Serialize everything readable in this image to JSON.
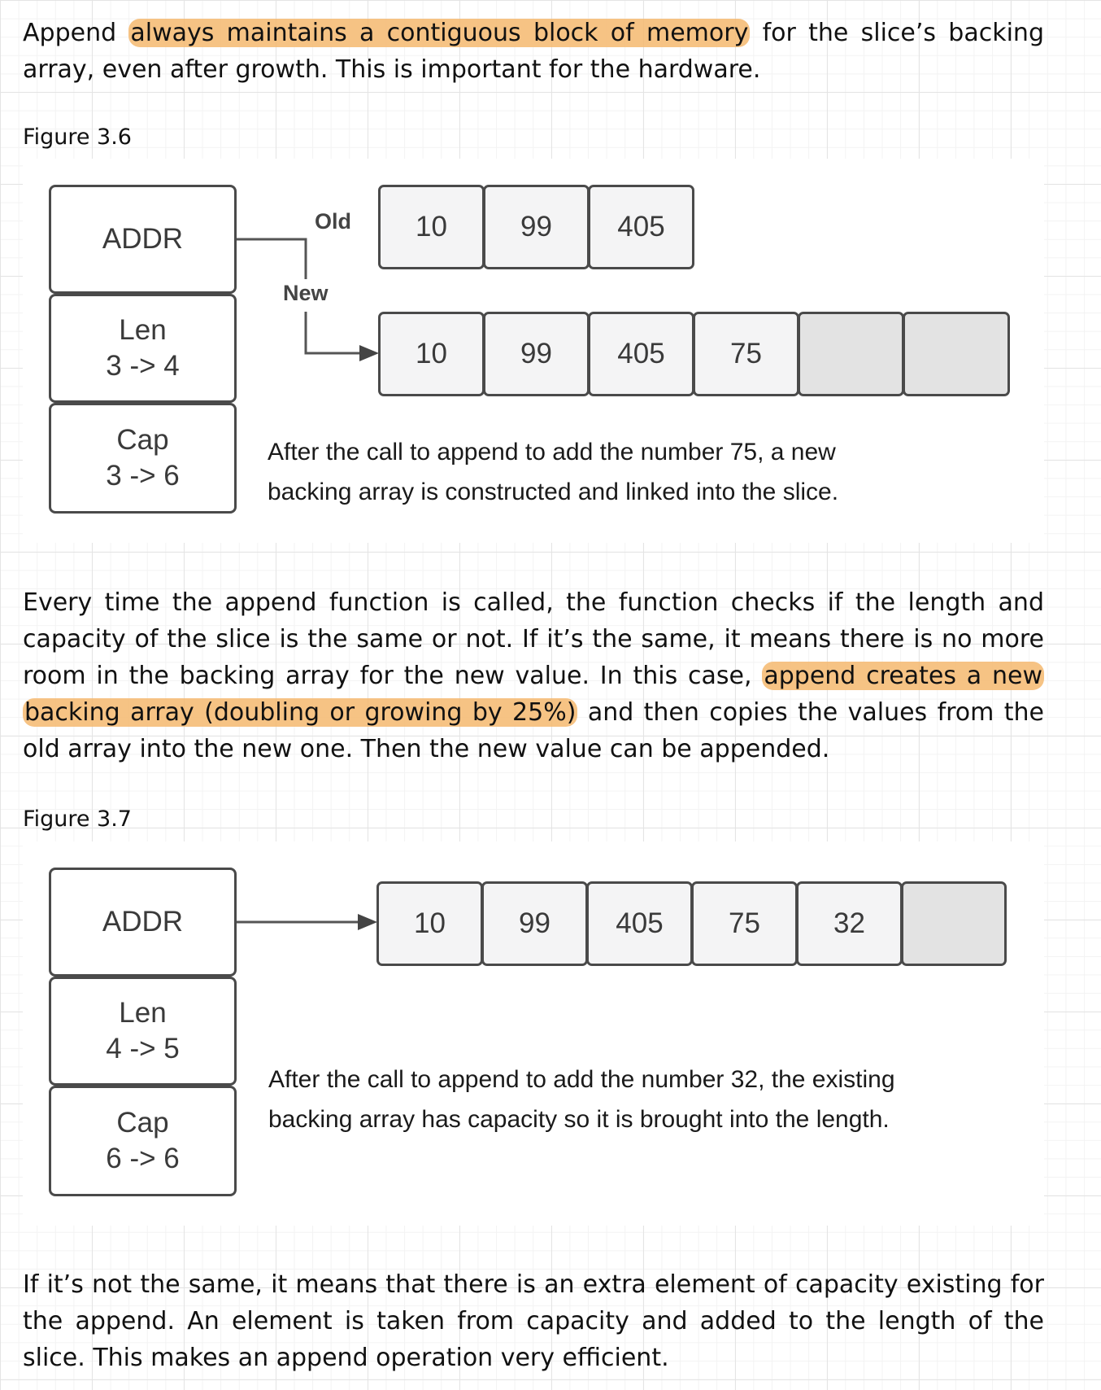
{
  "paragraphs": {
    "p1": {
      "pre": "Append ",
      "hl": "always maintains a contiguous block of memory",
      "post": " for the slice’s backing array, even after growth. This is important for the hardware."
    },
    "p2": {
      "pre": "Every time the append function is called, the function checks if the length and capacity of the slice is the same or not. If it’s the same, it means there is no more room in the backing array for the new value. In this case, ",
      "hl": "append creates a new backing array (doubling or growing by 25%)",
      "post": " and then copies the values from the old array into the new one. Then the new value can be appended."
    },
    "p3": "If it’s not the same, it means that there is an extra element of capacity existing for the append. An element is taken from capacity and added to the length of the slice. This makes an append operation very efficient."
  },
  "figure_3_6": {
    "label": "Figure 3.6",
    "header": {
      "addr": "ADDR",
      "len_label": "Len",
      "len_value": "3 -> 4",
      "cap_label": "Cap",
      "cap_value": "3 -> 6"
    },
    "old_label": "Old",
    "new_label": "New",
    "old_array": [
      "10",
      "99",
      "405"
    ],
    "new_array": [
      "10",
      "99",
      "405",
      "75",
      "",
      ""
    ],
    "caption_line1": "After the call to append to add the number 75, a new",
    "caption_line2": "backing array is constructed and linked into the slice."
  },
  "figure_3_7": {
    "label": "Figure 3.7",
    "header": {
      "addr": "ADDR",
      "len_label": "Len",
      "len_value": "4 -> 5",
      "cap_label": "Cap",
      "cap_value": "6 -> 6"
    },
    "array": [
      "10",
      "99",
      "405",
      "75",
      "32",
      ""
    ],
    "caption_line1": "After the call to append to add the number 32, the existing",
    "caption_line2": "backing array has capacity so it is brought into the length."
  },
  "colors": {
    "highlight": "#f4b86e",
    "box_border": "#4a4a4a",
    "cell_fill": "#f4f4f5",
    "empty_cell_fill": "#e3e3e3"
  }
}
